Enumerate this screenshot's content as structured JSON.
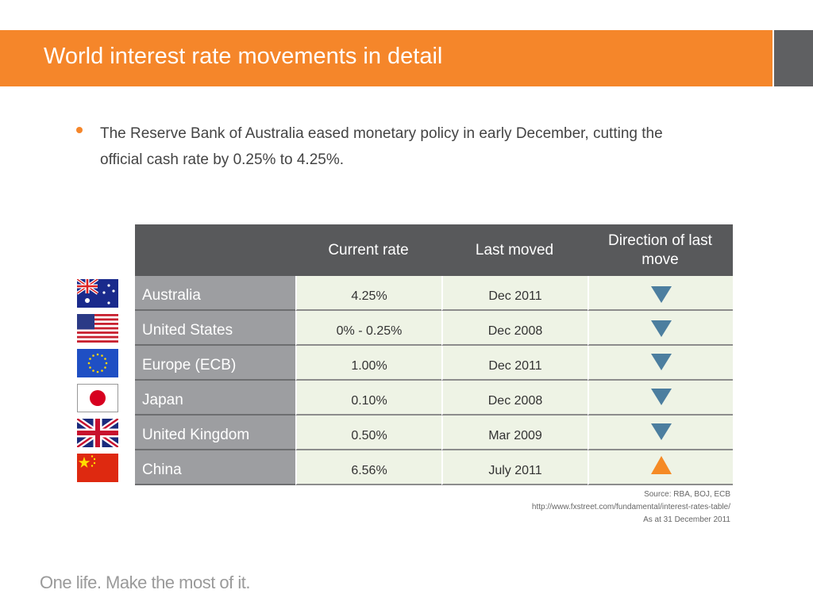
{
  "header": {
    "title": "World interest rate movements in detail"
  },
  "bullets": [
    "The Reserve Bank of Australia eased monetary policy in early December, cutting the official cash rate by 0.25% to 4.25%."
  ],
  "table": {
    "columns": [
      "Current rate",
      "Last moved",
      "Direction of last move"
    ],
    "rows": [
      [
        "Australia",
        "4.25%",
        "Dec 2011"
      ],
      [
        "United States",
        "0% - 0.25%",
        "Dec 2008"
      ],
      [
        "Europe (ECB)",
        "1.00%",
        "Dec 2011"
      ],
      [
        "Japan",
        "0.10%",
        "Dec 2008"
      ],
      [
        "United Kingdom",
        "0.50%",
        "Mar 2009"
      ],
      [
        "China",
        "6.56%",
        "July 2011"
      ]
    ]
  },
  "sources": [
    "Source: RBA, BOJ, ECB",
    "http://www.fxstreet.com/fundamental/interest-rates-table/",
    "As at 31 December 2011"
  ],
  "footer": {
    "tagline": "One life. Make the most of it."
  }
}
